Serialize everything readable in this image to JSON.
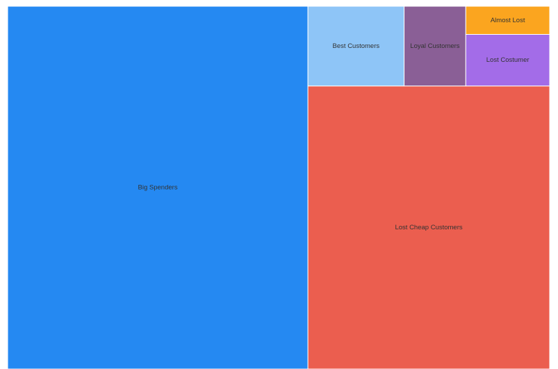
{
  "chart_data": {
    "type": "treemap",
    "categories": [
      "Big Spenders",
      "Lost Cheap Customers",
      "Best Customers",
      "Loyal Customers",
      "Lost Costumer",
      "Almost Lost"
    ],
    "values": [
      55.4,
      34.8,
      3.9,
      2.5,
      2.2,
      1.2
    ],
    "colors": [
      "#2589f2",
      "#eb5e4f",
      "#8ec5f7",
      "#8a5f96",
      "#a36ce8",
      "#fba51f"
    ]
  }
}
